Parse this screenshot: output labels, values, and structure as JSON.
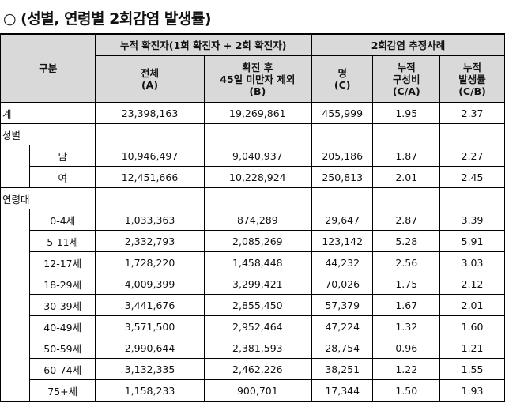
{
  "title": "(성별, 연령별 2회감염 발생률)",
  "title_bullet": "○",
  "header": {
    "category": "구분",
    "group1": "누적 확진자(1회 확진자 + 2회 확진자)",
    "group2": "2회감염 추정사례",
    "col_total": "전체",
    "col_total_code": "(A)",
    "col_excl_1": "확진 후",
    "col_excl_2": "45일 미만자 제외",
    "col_excl_code": "(B)",
    "col_count": "명",
    "col_count_code": "(C)",
    "col_ratio_1": "누적",
    "col_ratio_2": "구성비",
    "col_ratio_code": "(C/A)",
    "col_rate_1": "누적",
    "col_rate_2": "발생률",
    "col_rate_code": "(C/B)"
  },
  "total_row": {
    "label": "계",
    "a": "23,398,163",
    "b": "19,269,861",
    "c": "455,999",
    "ratio": "1.95",
    "rate": "2.37"
  },
  "sex_label": "성별",
  "sex_rows": [
    {
      "label": "남",
      "a": "10,946,497",
      "b": "9,040,937",
      "c": "205,186",
      "ratio": "1.87",
      "rate": "2.27"
    },
    {
      "label": "여",
      "a": "12,451,666",
      "b": "10,228,924",
      "c": "250,813",
      "ratio": "2.01",
      "rate": "2.45"
    }
  ],
  "age_label": "연령대",
  "age_rows": [
    {
      "label": "0-4세",
      "a": "1,033,363",
      "b": "874,289",
      "c": "29,647",
      "ratio": "2.87",
      "rate": "3.39"
    },
    {
      "label": "5-11세",
      "a": "2,332,793",
      "b": "2,085,269",
      "c": "123,142",
      "ratio": "5.28",
      "rate": "5.91"
    },
    {
      "label": "12-17세",
      "a": "1,728,220",
      "b": "1,458,448",
      "c": "44,232",
      "ratio": "2.56",
      "rate": "3.03"
    },
    {
      "label": "18-29세",
      "a": "4,009,399",
      "b": "3,299,421",
      "c": "70,026",
      "ratio": "1.75",
      "rate": "2.12"
    },
    {
      "label": "30-39세",
      "a": "3,441,676",
      "b": "2,855,450",
      "c": "57,379",
      "ratio": "1.67",
      "rate": "2.01"
    },
    {
      "label": "40-49세",
      "a": "3,571,500",
      "b": "2,952,464",
      "c": "47,224",
      "ratio": "1.32",
      "rate": "1.60"
    },
    {
      "label": "50-59세",
      "a": "2,990,644",
      "b": "2,381,593",
      "c": "28,754",
      "ratio": "0.96",
      "rate": "1.21"
    },
    {
      "label": "60-74세",
      "a": "3,132,335",
      "b": "2,462,226",
      "c": "38,251",
      "ratio": "1.22",
      "rate": "1.55"
    },
    {
      "label": "75+세",
      "a": "1,158,233",
      "b": "900,701",
      "c": "17,344",
      "ratio": "1.50",
      "rate": "1.93"
    }
  ]
}
